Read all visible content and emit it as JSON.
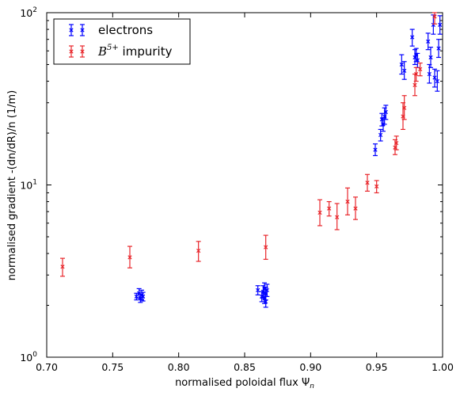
{
  "chart_data": {
    "type": "scatter",
    "title": "",
    "xlabel": "normalised poloidal flux Ψ",
    "xlabel_sub": "n",
    "ylabel": "normalised gradient -(dn/dR)/n (1/m)",
    "xlim": [
      0.7,
      1.0
    ],
    "ylim": [
      1,
      100
    ],
    "yscale": "log",
    "grid": false,
    "legend_position": "top-left",
    "x_ticks": [
      "0.70",
      "0.75",
      "0.80",
      "0.85",
      "0.90",
      "0.95",
      "1.00"
    ],
    "y_ticks": [
      {
        "value": 1,
        "base": "10",
        "exp": "0"
      },
      {
        "value": 10,
        "base": "10",
        "exp": "1"
      },
      {
        "value": 100,
        "base": "10",
        "exp": "2"
      }
    ],
    "series": [
      {
        "name": "electrons",
        "color": "#0000ff",
        "points": [
          {
            "x": 0.768,
            "y": 2.25,
            "lo": 2.15,
            "hi": 2.35
          },
          {
            "x": 0.77,
            "y": 2.35,
            "lo": 2.2,
            "hi": 2.5
          },
          {
            "x": 0.771,
            "y": 2.2,
            "lo": 2.08,
            "hi": 2.32
          },
          {
            "x": 0.772,
            "y": 2.3,
            "lo": 2.15,
            "hi": 2.45
          },
          {
            "x": 0.773,
            "y": 2.25,
            "lo": 2.12,
            "hi": 2.38
          },
          {
            "x": 0.86,
            "y": 2.45,
            "lo": 2.3,
            "hi": 2.6
          },
          {
            "x": 0.863,
            "y": 2.25,
            "lo": 2.1,
            "hi": 2.4
          },
          {
            "x": 0.864,
            "y": 2.4,
            "lo": 2.2,
            "hi": 2.6
          },
          {
            "x": 0.865,
            "y": 2.2,
            "lo": 2.05,
            "hi": 2.35
          },
          {
            "x": 0.865,
            "y": 2.5,
            "lo": 2.3,
            "hi": 2.7
          },
          {
            "x": 0.866,
            "y": 2.1,
            "lo": 1.95,
            "hi": 2.25
          },
          {
            "x": 0.866,
            "y": 2.35,
            "lo": 2.15,
            "hi": 2.55
          },
          {
            "x": 0.867,
            "y": 2.45,
            "lo": 2.25,
            "hi": 2.65
          },
          {
            "x": 0.949,
            "y": 16.0,
            "lo": 14.8,
            "hi": 17.3
          },
          {
            "x": 0.953,
            "y": 19.5,
            "lo": 18.0,
            "hi": 21.0
          },
          {
            "x": 0.954,
            "y": 24.0,
            "lo": 22.0,
            "hi": 26.0
          },
          {
            "x": 0.955,
            "y": 22.5,
            "lo": 20.5,
            "hi": 24.5
          },
          {
            "x": 0.956,
            "y": 25.0,
            "lo": 22.5,
            "hi": 28.0
          },
          {
            "x": 0.957,
            "y": 26.5,
            "lo": 24.0,
            "hi": 29.0
          },
          {
            "x": 0.969,
            "y": 50.0,
            "lo": 44.0,
            "hi": 57.0
          },
          {
            "x": 0.971,
            "y": 46.0,
            "lo": 41.0,
            "hi": 52.0
          },
          {
            "x": 0.977,
            "y": 72.0,
            "lo": 64.0,
            "hi": 80.0
          },
          {
            "x": 0.979,
            "y": 55.0,
            "lo": 50.0,
            "hi": 61.0
          },
          {
            "x": 0.98,
            "y": 57.0,
            "lo": 52.0,
            "hi": 62.0
          },
          {
            "x": 0.981,
            "y": 53.0,
            "lo": 48.0,
            "hi": 58.0
          },
          {
            "x": 0.989,
            "y": 68.0,
            "lo": 61.0,
            "hi": 76.0
          },
          {
            "x": 0.99,
            "y": 44.0,
            "lo": 39.0,
            "hi": 50.0
          },
          {
            "x": 0.991,
            "y": 55.0,
            "lo": 48.0,
            "hi": 63.0
          },
          {
            "x": 0.993,
            "y": 85.0,
            "lo": 75.0,
            "hi": 97.0
          },
          {
            "x": 0.994,
            "y": 42.0,
            "lo": 37.0,
            "hi": 47.0
          },
          {
            "x": 0.996,
            "y": 40.0,
            "lo": 35.0,
            "hi": 46.0
          },
          {
            "x": 0.997,
            "y": 62.0,
            "lo": 55.0,
            "hi": 70.0
          },
          {
            "x": 0.998,
            "y": 85.0,
            "lo": 75.0,
            "hi": 96.0
          }
        ]
      },
      {
        "name": "B5+ impurity",
        "legend_base": "B",
        "legend_sup": "5+",
        "legend_suffix": " impurity",
        "color": "#e8262b",
        "points": [
          {
            "x": 0.712,
            "y": 3.35,
            "lo": 2.95,
            "hi": 3.75
          },
          {
            "x": 0.763,
            "y": 3.8,
            "lo": 3.3,
            "hi": 4.4
          },
          {
            "x": 0.815,
            "y": 4.15,
            "lo": 3.6,
            "hi": 4.7
          },
          {
            "x": 0.866,
            "y": 4.35,
            "lo": 3.7,
            "hi": 5.1
          },
          {
            "x": 0.907,
            "y": 6.9,
            "lo": 5.8,
            "hi": 8.2
          },
          {
            "x": 0.914,
            "y": 7.3,
            "lo": 6.6,
            "hi": 8.0
          },
          {
            "x": 0.92,
            "y": 6.5,
            "lo": 5.5,
            "hi": 7.8
          },
          {
            "x": 0.928,
            "y": 8.0,
            "lo": 6.7,
            "hi": 9.6
          },
          {
            "x": 0.934,
            "y": 7.3,
            "lo": 6.3,
            "hi": 8.5
          },
          {
            "x": 0.943,
            "y": 10.3,
            "lo": 9.2,
            "hi": 11.5
          },
          {
            "x": 0.95,
            "y": 9.8,
            "lo": 9.0,
            "hi": 10.6
          },
          {
            "x": 0.964,
            "y": 16.5,
            "lo": 15.0,
            "hi": 18.3
          },
          {
            "x": 0.965,
            "y": 17.5,
            "lo": 16.0,
            "hi": 19.2
          },
          {
            "x": 0.97,
            "y": 25.0,
            "lo": 21.0,
            "hi": 30.0
          },
          {
            "x": 0.971,
            "y": 28.0,
            "lo": 24.0,
            "hi": 33.0
          },
          {
            "x": 0.979,
            "y": 38.0,
            "lo": 33.0,
            "hi": 44.0
          },
          {
            "x": 0.98,
            "y": 44.0,
            "lo": 40.0,
            "hi": 48.0
          },
          {
            "x": 0.983,
            "y": 47.0,
            "lo": 43.0,
            "hi": 51.0
          },
          {
            "x": 0.994,
            "y": 95.0,
            "lo": 86.0,
            "hi": 100.0
          }
        ]
      }
    ]
  }
}
